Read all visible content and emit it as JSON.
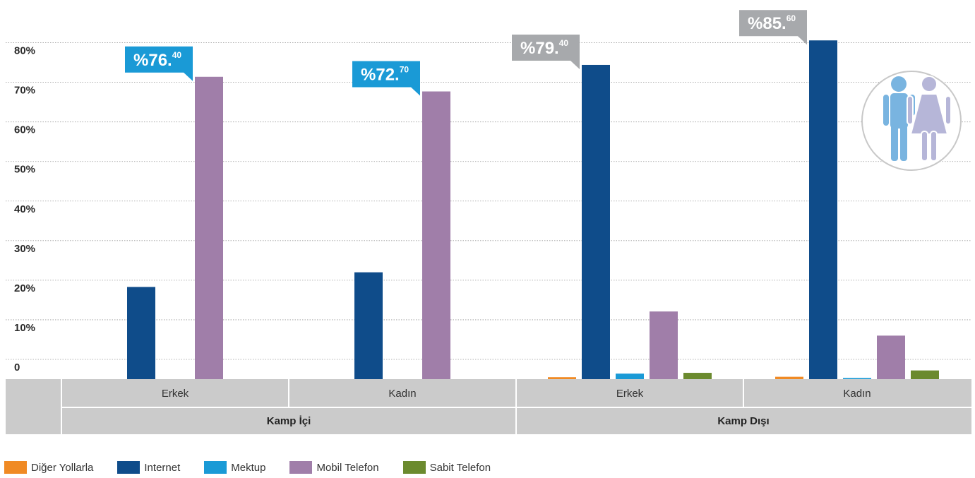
{
  "chart_data": {
    "type": "bar",
    "y_ticks": [
      "0",
      "10%",
      "20%",
      "30%",
      "40%",
      "50%",
      "60%",
      "70%",
      "80%"
    ],
    "ylim": [
      0,
      85
    ],
    "grid": true,
    "categories": [
      "Erkek",
      "Kadın",
      "Erkek",
      "Kadın"
    ],
    "groups": [
      {
        "label": "Kamp İçi",
        "categories": [
          0,
          1
        ]
      },
      {
        "label": "Kamp Dışı",
        "categories": [
          2,
          3
        ]
      }
    ],
    "series": [
      {
        "name": "Diğer Yollarla",
        "color": "#f08a24",
        "values": [
          0,
          0,
          0.5,
          0.6
        ]
      },
      {
        "name": "Internet",
        "color": "#0f4c8a",
        "values": [
          23.3,
          27,
          79.4,
          85.6
        ]
      },
      {
        "name": "Mektup",
        "color": "#1a9ad6",
        "values": [
          0,
          0,
          1.4,
          0.3
        ]
      },
      {
        "name": "Mobil Telefon",
        "color": "#a07ea9",
        "values": [
          76.4,
          72.7,
          17.1,
          11
        ]
      },
      {
        "name": "Sabit Telefon",
        "color": "#6b8a2e",
        "values": [
          0,
          0,
          1.6,
          2.2
        ]
      }
    ],
    "callouts": [
      {
        "category": 0,
        "series": 3,
        "main": "%76.",
        "sup": "40",
        "color": "#1a9ad6"
      },
      {
        "category": 1,
        "series": 3,
        "main": "%72.",
        "sup": "70",
        "color": "#1a9ad6"
      },
      {
        "category": 2,
        "series": 1,
        "main": "%79.",
        "sup": "40",
        "color": "#a7a9ac"
      },
      {
        "category": 3,
        "series": 1,
        "main": "%85.",
        "sup": "60",
        "color": "#a7a9ac"
      }
    ],
    "legend_position": "bottom-left",
    "icon": "man-woman-icon"
  }
}
